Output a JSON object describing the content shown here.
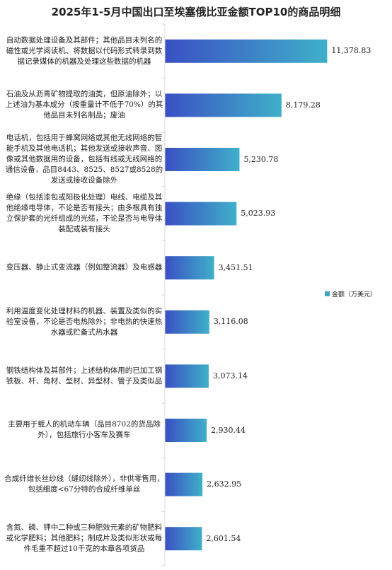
{
  "chart_data": {
    "type": "bar",
    "orientation": "horizontal",
    "title": "2025年1-5月中国出口至埃塞俄比亚金额TOP10的商品明细",
    "categories": [
      "自动数据处理设备及其部件；其他品目未列名的磁性或光学阅读机、将数据以代码形式转录到数据记录媒体的机器及处理这些数据的机器",
      "石油及从沥青矿物提取的油类，但原油除外；以上述油为基本成分（按重量计不低于70%）的其他品目未列名制品；废油",
      "电话机，包括用于蜂窝网络或其他无线网络的智能手机及其他电话机；其他发送或接收声音、图像或其他数据用的设备，包括有线或无线网络的通信设备，品目8443、8525、8527或8528的发送或接收设备除外",
      "绝缘（包括漆包或阳极化处理）电线、电缆及其他绝缘电导体，不论是否有接头；由多根具有独立保护套的光纤组成的光缆，不论是否与电导体装配或装有接头",
      "变压器、静止式变流器（例如整流器）及电感器",
      "利用温度变化处理材料的机器、装置及类似的实验室设备，不论是否电热除外；非电热的快速热水器或贮备式热水器",
      "钢铁结构体及其部件；上述结构体用的已加工钢铁板、杆、角材、型材、异型材、管子及类似品",
      "主要用于载人的机动车辆（品目8702的货品除外），包括旅行小客车及赛车",
      "合成纤维长丝纱线（缝纫线除外），非供零售用，包括细度<67分特的合成纤维单丝",
      "含氮、磷、钾中二种或三种肥效元素的矿物肥料或化学肥料；其他肥料；制成片及类似形状或每件毛重不超过10千克的本章各项货品"
    ],
    "series": [
      {
        "name": "金额（万美元）",
        "values": [
          11378.83,
          8179.28,
          5230.78,
          5023.93,
          3451.51,
          3116.08,
          3073.14,
          2930.44,
          2632.95,
          2601.54
        ]
      }
    ],
    "value_labels": [
      "11,378.83",
      "8,179.28",
      "5,230.78",
      "5,023.93",
      "3,451.51",
      "3,116.08",
      "3,073.14",
      "2,930.44",
      "2,632.95",
      "2,601.54"
    ],
    "xlim": [
      0,
      12500
    ],
    "grid": false,
    "legend_position": "right",
    "colors": {
      "bar_start": "#3a4fc4",
      "bar_end": "#3fb0c9",
      "legend": "#3fa5c7",
      "axis": "#d9d9d9"
    }
  }
}
